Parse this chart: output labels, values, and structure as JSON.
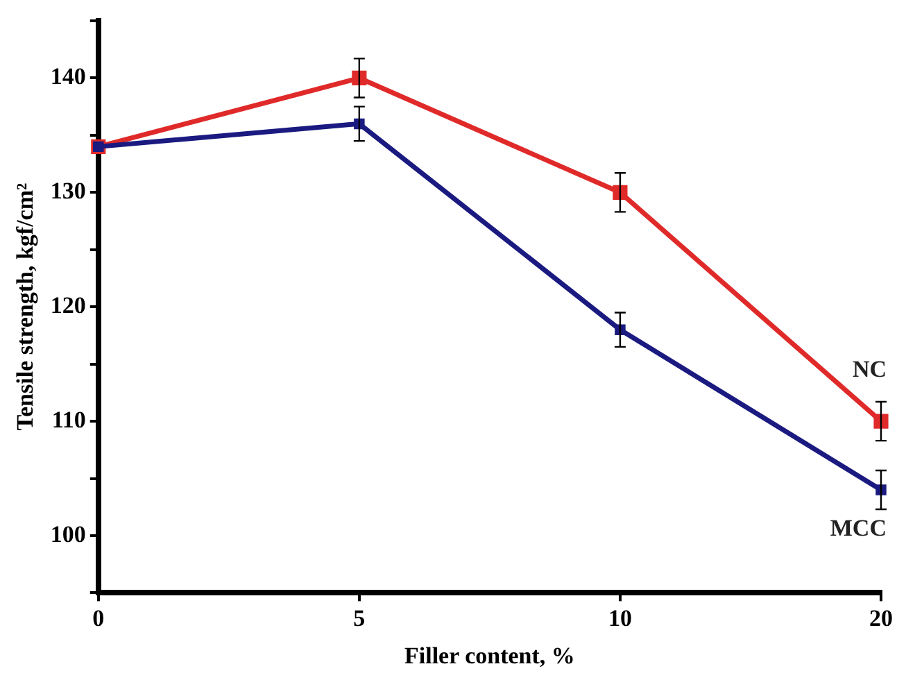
{
  "chart_data": {
    "type": "line",
    "xlabel": "Filler content, %",
    "ylabel": "Tensile strength, kgf/cm²",
    "categories": [
      "0",
      "5",
      "10",
      "20"
    ],
    "series": [
      {
        "name": "NC",
        "color": "#e02a2a",
        "values": [
          134,
          140,
          130,
          110
        ],
        "errors": [
          null,
          1.7,
          1.7,
          1.7
        ]
      },
      {
        "name": "MCC",
        "color": "#1a1a80",
        "values": [
          134,
          136,
          118,
          104
        ],
        "errors": [
          null,
          1.5,
          1.5,
          1.7
        ]
      }
    ],
    "ylim": [
      95,
      145
    ],
    "yticks": [
      {
        "value": 95,
        "label": null
      },
      100,
      {
        "value": 105,
        "label": null
      },
      110,
      {
        "value": 115,
        "label": null
      },
      120,
      {
        "value": 125,
        "label": null
      },
      130,
      {
        "value": 135,
        "label": null
      },
      140,
      {
        "value": 145,
        "label": null
      }
    ],
    "grid": false,
    "legend": false,
    "marker": "square",
    "line_style": "solid"
  }
}
